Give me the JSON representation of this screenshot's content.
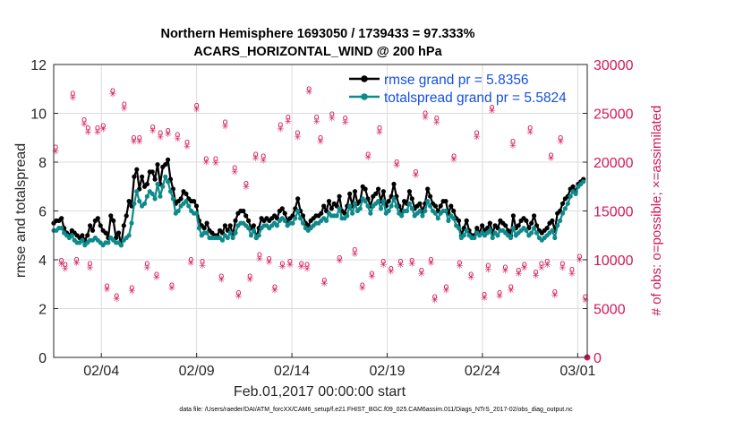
{
  "colors": {
    "rmse": "#000000",
    "spread": "#0e8a8a",
    "obs": "#d4175a",
    "legend_text": "#1550e0",
    "grid": "#dcdcdc"
  },
  "chart_data": {
    "type": "line",
    "title_line1": "Northern Hemisphere 1693050 / 1739433 = 97.333%",
    "title_line2": "ACARS_HORIZONTAL_WIND @ 200 hPa",
    "xlabel": "Feb.01,2017 00:00:00 start",
    "ylabel_left": "rmse and totalspread",
    "ylabel_right": "# of obs: o=possible; ×=assimilated",
    "ylim_left": [
      0,
      12
    ],
    "ylim_right": [
      0,
      30000
    ],
    "xlim_days": [
      0,
      28
    ],
    "x_ticks": [
      {
        "day": 2.5,
        "label": "02/04"
      },
      {
        "day": 7.5,
        "label": "02/09"
      },
      {
        "day": 12.5,
        "label": "02/14"
      },
      {
        "day": 17.5,
        "label": "02/19"
      },
      {
        "day": 22.5,
        "label": "02/24"
      },
      {
        "day": 27.5,
        "label": "03/01"
      }
    ],
    "y_ticks_left": [
      "0",
      "2",
      "4",
      "6",
      "8",
      "10",
      "12"
    ],
    "y_ticks_right": [
      "0",
      "5000",
      "10000",
      "15000",
      "20000",
      "25000",
      "30000"
    ],
    "legend": {
      "location": "top-right",
      "entries": [
        "rmse grand pr = 5.8356",
        "totalspread grand pr = 5.5824"
      ]
    },
    "footer": "data file: /Users/raeder/DAI/ATM_forcXX/CAM6_setup/f.e21.FHIST_BGC.f09_025.CAM6assim.011/Diags_NTrS_2017-02/obs_diag_output.nc",
    "series": [
      {
        "name": "rmse",
        "values": [
          5.5,
          5.6,
          5.6,
          5.7,
          5.3,
          5.1,
          5.0,
          5.2,
          5.1,
          5.0,
          4.9,
          5.0,
          4.8,
          5.0,
          5.4,
          5.2,
          5.6,
          5.7,
          5.4,
          5.2,
          5.1,
          4.9,
          5.8,
          5.6,
          4.9,
          5.1,
          4.6,
          5.4,
          5.8,
          6.4,
          6.2,
          7.4,
          7.7,
          6.9,
          7.4,
          7.0,
          7.1,
          7.6,
          7.6,
          7.3,
          7.9,
          7.1,
          7.8,
          7.9,
          8.1,
          7.3,
          6.9,
          6.3,
          6.4,
          6.5,
          6.8,
          6.7,
          6.5,
          6.4,
          6.4,
          6.2,
          5.6,
          5.4,
          5.3,
          5.5,
          5.2,
          5.1,
          5.0,
          5.0,
          5.2,
          5.1,
          5.4,
          5.2,
          5.4,
          5.0,
          5.6,
          5.9,
          6.0,
          6.0,
          5.8,
          5.6,
          5.3,
          5.4,
          4.9,
          5.3,
          5.7,
          5.6,
          5.7,
          5.6,
          5.7,
          5.8,
          5.7,
          6.0,
          6.1,
          5.9,
          5.6,
          5.7,
          5.8,
          6.1,
          6.5,
          6.0,
          5.8,
          5.5,
          5.4,
          5.6,
          5.7,
          5.8,
          5.8,
          5.9,
          6.2,
          6.0,
          6.4,
          6.1,
          6.3,
          6.2,
          6.6,
          6.0,
          5.9,
          6.2,
          6.7,
          6.2,
          6.8,
          6.3,
          6.4,
          7.0,
          6.9,
          6.5,
          6.2,
          6.6,
          6.7,
          6.9,
          6.4,
          6.8,
          6.2,
          6.4,
          6.6,
          7.1,
          6.6,
          6.2,
          6.0,
          6.4,
          6.3,
          6.8,
          6.5,
          6.1,
          6.2,
          6.3,
          6.0,
          6.3,
          6.9,
          6.6,
          6.3,
          6.2,
          6.0,
          6.2,
          6.4,
          6.4,
          5.9,
          6.2,
          6.0,
          5.7,
          5.6,
          5.0,
          5.3,
          5.6,
          5.2,
          5.0,
          5.0,
          5.3,
          5.1,
          5.4,
          5.2,
          5.3,
          5.5,
          5.1,
          5.4,
          5.3,
          5.6,
          5.5,
          5.4,
          5.2,
          5.0,
          5.8,
          5.3,
          5.4,
          5.6,
          5.7,
          5.6,
          5.3,
          5.5,
          5.8,
          5.4,
          5.2,
          5.1,
          5.2,
          5.3,
          5.5,
          5.6,
          5.2,
          5.9,
          6.0,
          6.3,
          6.5,
          6.6,
          6.9,
          7.0,
          6.8,
          7.1,
          7.2,
          7.3
        ]
      },
      {
        "name": "totalspread",
        "values": [
          5.2,
          5.2,
          5.3,
          5.3,
          5.1,
          5.0,
          4.9,
          5.0,
          4.8,
          4.7,
          4.7,
          4.8,
          4.6,
          4.7,
          4.8,
          4.8,
          4.9,
          4.8,
          4.7,
          4.6,
          4.7,
          4.7,
          4.9,
          4.8,
          4.7,
          4.7,
          4.6,
          4.8,
          4.9,
          5.0,
          5.5,
          6.3,
          6.8,
          6.4,
          6.2,
          6.3,
          6.6,
          6.8,
          6.7,
          6.5,
          7.1,
          6.6,
          7.0,
          7.4,
          7.2,
          6.8,
          6.5,
          5.9,
          6.0,
          6.2,
          6.3,
          6.4,
          6.2,
          6.0,
          5.9,
          5.9,
          5.3,
          5.0,
          5.1,
          5.1,
          4.9,
          4.9,
          4.9,
          4.9,
          4.9,
          4.8,
          5.0,
          4.9,
          5.1,
          4.9,
          5.1,
          5.4,
          5.5,
          5.5,
          5.4,
          5.3,
          5.0,
          5.2,
          4.9,
          5.0,
          5.3,
          5.4,
          5.4,
          5.3,
          5.4,
          5.5,
          5.4,
          5.6,
          5.7,
          5.6,
          5.4,
          5.5,
          5.5,
          5.7,
          6.0,
          5.7,
          5.5,
          5.3,
          5.2,
          5.3,
          5.4,
          5.5,
          5.5,
          5.6,
          5.7,
          5.6,
          5.9,
          5.8,
          5.8,
          5.8,
          6.1,
          5.7,
          5.7,
          5.8,
          6.2,
          5.9,
          6.3,
          6.0,
          6.1,
          6.5,
          6.4,
          6.2,
          5.9,
          6.2,
          6.3,
          6.4,
          6.1,
          6.4,
          5.9,
          6.0,
          6.2,
          6.5,
          6.2,
          5.9,
          5.8,
          6.0,
          6.0,
          6.3,
          6.1,
          5.8,
          5.9,
          6.0,
          5.8,
          6.0,
          6.4,
          6.2,
          6.0,
          5.9,
          5.7,
          5.9,
          6.0,
          6.0,
          5.6,
          5.8,
          5.7,
          5.4,
          5.3,
          4.9,
          5.0,
          5.2,
          5.0,
          4.9,
          4.9,
          5.1,
          5.0,
          5.1,
          5.0,
          5.1,
          5.2,
          4.9,
          5.1,
          5.0,
          5.2,
          5.2,
          5.1,
          5.0,
          4.9,
          5.3,
          5.0,
          5.1,
          5.2,
          5.3,
          5.2,
          5.0,
          5.1,
          5.3,
          5.1,
          4.9,
          4.8,
          4.9,
          5.0,
          5.1,
          5.2,
          4.9,
          5.4,
          5.6,
          5.9,
          6.1,
          6.3,
          6.6,
          6.8,
          6.7,
          7.0,
          7.1,
          7.2
        ]
      }
    ],
    "obs_possible": [
      21500,
      24300,
      23700,
      27300,
      25900,
      22500,
      23000,
      22800,
      25800,
      20300,
      19400,
      17800,
      20600,
      23800,
      24600,
      27500,
      22500,
      24900,
      24500,
      20800,
      23500,
      20000,
      19000,
      25000,
      24500,
      20600,
      23000,
      25600,
      22100,
      23500,
      20700,
      22500,
      27000,
      23500,
      23500,
      22500,
      23600,
      23200,
      22000,
      20300,
      24100,
      20800,
      23000,
      24600,
      9900,
      9500,
      10000,
      9600,
      7300,
      6300,
      7100,
      9600,
      8500,
      7400,
      10000,
      9800,
      8300,
      6600,
      10500,
      7200,
      9800,
      9500,
      7900,
      10200,
      11000,
      8600,
      9800,
      9100,
      9900,
      8900,
      6200,
      7200,
      9700,
      8500,
      9400,
      6600,
      7200,
      9500,
      8700,
      9800,
      9600,
      9000,
      10300,
      6200,
      7400,
      9800,
      10000,
      6400,
      9200,
      8900,
      9600,
      6700,
      9600,
      8300,
      10100,
      9600
    ],
    "obs_assimilated": [
      21000,
      23800,
      23300,
      26900,
      25400,
      22000,
      22500,
      22300,
      25300,
      19800,
      18900,
      17400,
      20100,
      23300,
      24100,
      27100,
      22000,
      24400,
      24000,
      20400,
      23000,
      19600,
      18600,
      24500,
      24000,
      20200,
      22500,
      25200,
      21600,
      23000,
      20300,
      22000,
      26500,
      23000,
      23000,
      22000,
      23100,
      22800,
      21500,
      19900,
      23600,
      20300,
      22500,
      24100,
      9500,
      9000,
      9600,
      9100,
      6900,
      5900,
      6700,
      9100,
      8100,
      7000,
      9600,
      9300,
      7900,
      6200,
      10000,
      6800,
      9400,
      9000,
      7500,
      9800,
      10500,
      8200,
      9400,
      8700,
      9500,
      8500,
      5800,
      6800,
      9300,
      8100,
      8900,
      6200,
      6800,
      9100,
      8300,
      9400,
      9100,
      8500,
      9900,
      5800,
      7000,
      9400,
      9600,
      6000,
      8800,
      8500,
      9100,
      6300,
      9200,
      7900,
      9700,
      9200
    ],
    "obs_x_days": [
      0.1,
      1.6,
      2.6,
      3.1,
      3.7,
      4.5,
      5.6,
      6.5,
      7.5,
      8.5,
      9.5,
      10.1,
      11.0,
      11.9,
      12.3,
      13.4,
      14.0,
      14.6,
      15.3,
      16.5,
      17.1,
      18.0,
      19.0,
      19.5,
      20.1,
      21.0,
      22.2,
      23.0,
      24.1,
      25.0,
      26.1,
      26.6,
      1.0,
      1.8,
      2.3,
      4.2,
      5.2,
      6.0,
      7.0,
      8.0,
      9.0,
      10.6,
      12.8,
      13.8,
      0.4,
      0.6,
      1.2,
      1.9,
      2.8,
      3.3,
      4.1,
      4.9,
      5.4,
      6.2,
      7.2,
      7.8,
      8.8,
      9.7,
      10.8,
      11.6,
      12.4,
      13.3,
      14.2,
      15.0,
      15.8,
      16.7,
      17.3,
      17.7,
      18.8,
      19.3,
      20.0,
      20.6,
      21.3,
      21.9,
      22.8,
      23.4,
      24.0,
      24.7,
      25.3,
      25.9,
      26.7,
      27.2,
      27.6,
      27.9,
      16.2,
      18.2,
      19.8,
      22.6,
      23.7,
      24.4,
      25.6,
      26.3,
      13.0,
      10.3,
      11.3,
      12.0
    ],
    "final_point": {
      "day": 28,
      "value": 0
    }
  }
}
